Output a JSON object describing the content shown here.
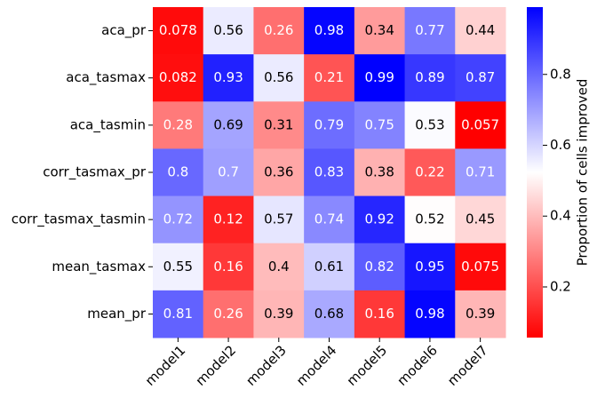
{
  "chart_data": {
    "type": "heatmap",
    "rows": [
      "aca_pr",
      "aca_tasmax",
      "aca_tasmin",
      "corr_tasmax_pr",
      "corr_tasmax_tasmin",
      "mean_tasmax",
      "mean_pr"
    ],
    "columns": [
      "model1",
      "model2",
      "model3",
      "model4",
      "model5",
      "model6",
      "model7"
    ],
    "values": [
      [
        0.078,
        0.56,
        0.26,
        0.98,
        0.34,
        0.77,
        0.44
      ],
      [
        0.082,
        0.93,
        0.56,
        0.21,
        0.99,
        0.89,
        0.87
      ],
      [
        0.28,
        0.69,
        0.31,
        0.79,
        0.75,
        0.53,
        0.057
      ],
      [
        0.8,
        0.7,
        0.36,
        0.83,
        0.38,
        0.22,
        0.71
      ],
      [
        0.72,
        0.12,
        0.57,
        0.74,
        0.92,
        0.52,
        0.45
      ],
      [
        0.55,
        0.16,
        0.4,
        0.61,
        0.82,
        0.95,
        0.075
      ],
      [
        0.81,
        0.26,
        0.39,
        0.68,
        0.16,
        0.98,
        0.39
      ]
    ],
    "colormap": [
      "#ff0000",
      "#ffffff",
      "#0000ff"
    ],
    "zlim": [
      0.057,
      0.99
    ],
    "colorbar_label": "Proportion of cells improved",
    "colorbar_ticks": [
      0.2,
      0.4,
      0.6,
      0.8
    ]
  }
}
